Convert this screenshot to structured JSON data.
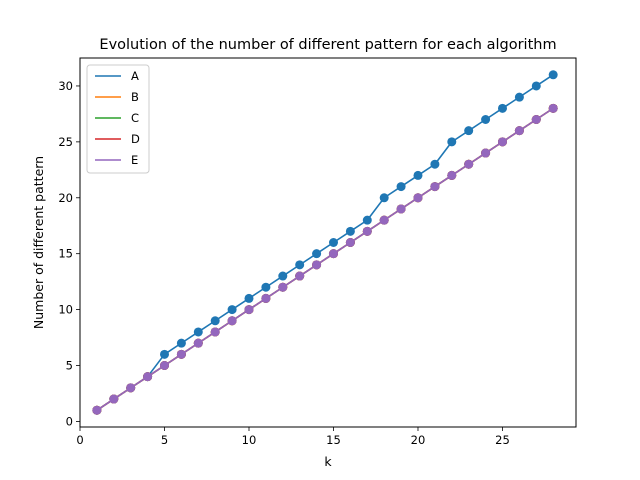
{
  "chart_data": {
    "type": "line",
    "title": "Evolution of the number of different pattern for each algorithm",
    "xlabel": "k",
    "ylabel": "Number of different pattern",
    "xlim": [
      0.0,
      29.35
    ],
    "ylim": [
      -0.5,
      32.5
    ],
    "xticks": [
      0,
      5,
      10,
      15,
      20,
      25
    ],
    "yticks": [
      0,
      5,
      10,
      15,
      20,
      25,
      30
    ],
    "grid": false,
    "legend_position": "top-left",
    "x": [
      1,
      2,
      3,
      4,
      5,
      6,
      7,
      8,
      9,
      10,
      11,
      12,
      13,
      14,
      15,
      16,
      17,
      18,
      19,
      20,
      21,
      22,
      23,
      24,
      25,
      26,
      27,
      28
    ],
    "series": [
      {
        "name": "A",
        "color": "#1f77b4",
        "values": [
          1,
          2,
          3,
          4,
          6,
          7,
          8,
          9,
          10,
          11,
          12,
          13,
          14,
          15,
          16,
          17,
          18,
          20,
          21,
          22,
          23,
          25,
          26,
          27,
          28,
          29,
          30,
          31
        ]
      },
      {
        "name": "B",
        "color": "#ff7f0e",
        "values": [
          1,
          2,
          3,
          4,
          5,
          6,
          7,
          8,
          9,
          10,
          11,
          12,
          13,
          14,
          15,
          16,
          17,
          18,
          19,
          20,
          21,
          22,
          23,
          24,
          25,
          26,
          27,
          28
        ]
      },
      {
        "name": "C",
        "color": "#2ca02c",
        "values": [
          1,
          2,
          3,
          4,
          5,
          6,
          7,
          8,
          9,
          10,
          11,
          12,
          13,
          14,
          15,
          16,
          17,
          18,
          19,
          20,
          21,
          22,
          23,
          24,
          25,
          26,
          27,
          28
        ]
      },
      {
        "name": "D",
        "color": "#d62728",
        "values": [
          1,
          2,
          3,
          4,
          5,
          6,
          7,
          8,
          9,
          10,
          11,
          12,
          13,
          14,
          15,
          16,
          17,
          18,
          19,
          20,
          21,
          22,
          23,
          24,
          25,
          26,
          27,
          28
        ]
      },
      {
        "name": "E",
        "color": "#9467bd",
        "values": [
          1,
          2,
          3,
          4,
          5,
          6,
          7,
          8,
          9,
          10,
          11,
          12,
          13,
          14,
          15,
          16,
          17,
          18,
          19,
          20,
          21,
          22,
          23,
          24,
          25,
          26,
          27,
          28
        ]
      }
    ]
  }
}
